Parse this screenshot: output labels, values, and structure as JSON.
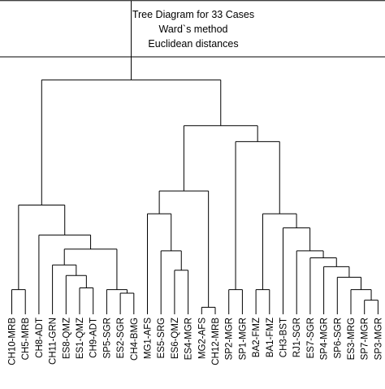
{
  "chart_data": {
    "type": "dendrogram",
    "title": "Tree Diagram for 33 Cases",
    "subtitle_lines": [
      "Ward`s method",
      "Euclidean distances"
    ],
    "method": "Ward`s method",
    "distance": "Euclidean distances",
    "orientation": "vertical",
    "leaves": [
      "CH10-MRB",
      "CH5-MRB",
      "CH8-ADT",
      "CH11-GRN",
      "ES8-QMZ",
      "ES1-QMZ",
      "CH9-ADT",
      "SP5-SGR",
      "ES2-SGR",
      "CH4-BMG",
      "MG1-AFS",
      "ES5-SRG",
      "ES6-QMZ",
      "ES4-MGR",
      "MG2-AFS",
      "CH12-MRB",
      "SP2-MGR",
      "SP1-MGR",
      "BA2-FMZ",
      "BA1-FMZ",
      "CH3-BST",
      "RJ1-SGR",
      "ES7-SGR",
      "SP4-MGR",
      "SP6-SGR",
      "ES3-MRG",
      "SP7-MGR",
      "SP3-MGR"
    ],
    "merges": [
      {
        "id": "n1",
        "children": [
          "CH10-MRB",
          "CH5-MRB"
        ],
        "height": 14
      },
      {
        "id": "n2",
        "children": [
          "ES1-QMZ",
          "CH9-ADT"
        ],
        "height": 15
      },
      {
        "id": "n3",
        "children": [
          "ES8-QMZ",
          "n2"
        ],
        "height": 22
      },
      {
        "id": "n4",
        "children": [
          "CH11-GRN",
          "n3"
        ],
        "height": 28
      },
      {
        "id": "n5",
        "children": [
          "ES2-SGR",
          "CH4-BMG"
        ],
        "height": 12
      },
      {
        "id": "n6",
        "children": [
          "SP5-SGR",
          "n5"
        ],
        "height": 14
      },
      {
        "id": "n7",
        "children": [
          "n4",
          "n6"
        ],
        "height": 37
      },
      {
        "id": "n8",
        "children": [
          "CH8-ADT",
          "n7"
        ],
        "height": 45
      },
      {
        "id": "n9",
        "children": [
          "n1",
          "n8"
        ],
        "height": 62
      },
      {
        "id": "n10",
        "children": [
          "ES6-QMZ",
          "ES4-MGR"
        ],
        "height": 25
      },
      {
        "id": "n11",
        "children": [
          "ES5-SRG",
          "n10"
        ],
        "height": 36
      },
      {
        "id": "n12",
        "children": [
          "MG1-AFS",
          "n11"
        ],
        "height": 57
      },
      {
        "id": "n13",
        "children": [
          "MG2-AFS",
          "CH12-MRB"
        ],
        "height": 4
      },
      {
        "id": "n14",
        "children": [
          "n12",
          "n13"
        ],
        "height": 70
      },
      {
        "id": "n15",
        "children": [
          "SP2-MGR",
          "SP1-MGR"
        ],
        "height": 14
      },
      {
        "id": "n16",
        "children": [
          "BA2-FMZ",
          "BA1-FMZ"
        ],
        "height": 14
      },
      {
        "id": "n17",
        "children": [
          "SP7-MGR",
          "SP3-MGR"
        ],
        "height": 8
      },
      {
        "id": "n18",
        "children": [
          "ES3-MRG",
          "n17"
        ],
        "height": 14
      },
      {
        "id": "n19",
        "children": [
          "SP6-SGR",
          "n18"
        ],
        "height": 21
      },
      {
        "id": "n20",
        "children": [
          "SP4-MGR",
          "n19"
        ],
        "height": 27
      },
      {
        "id": "n21",
        "children": [
          "ES7-SGR",
          "n20"
        ],
        "height": 32
      },
      {
        "id": "n22",
        "children": [
          "RJ1-SGR",
          "n21"
        ],
        "height": 36
      },
      {
        "id": "n23",
        "children": [
          "CH3-BST",
          "n22"
        ],
        "height": 49
      },
      {
        "id": "n24",
        "children": [
          "n16",
          "n23"
        ],
        "height": 57
      },
      {
        "id": "n25",
        "children": [
          "n15",
          "n24"
        ],
        "height": 98
      },
      {
        "id": "n26",
        "children": [
          "n14",
          "n25"
        ],
        "height": 107
      },
      {
        "id": "n27",
        "children": [
          "n9",
          "n26"
        ],
        "height": 133
      },
      {
        "id": "n28",
        "children": [
          "n27",
          "OFFSCREEN"
        ],
        "height": 178
      }
    ],
    "grid": false,
    "legend": "none"
  }
}
